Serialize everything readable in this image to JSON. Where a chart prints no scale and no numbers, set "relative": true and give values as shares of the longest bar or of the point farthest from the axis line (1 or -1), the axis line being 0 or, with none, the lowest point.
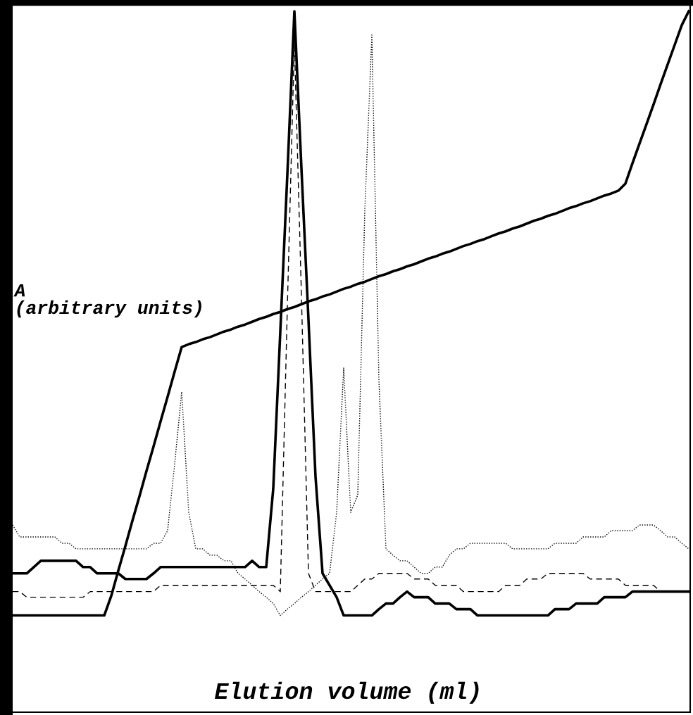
{
  "chart_data": {
    "type": "line",
    "relative": true,
    "xlabel": "Elution volume (ml)",
    "ylabel": "A\n(arbitrary units)",
    "legend": false,
    "grid": false,
    "marker": "none",
    "categories": [
      null,
      null,
      null,
      null,
      null,
      null,
      null,
      null,
      null,
      null,
      null,
      null,
      null,
      null,
      null,
      null,
      null,
      null,
      null,
      null,
      null,
      null,
      null,
      null,
      null,
      null,
      null,
      null,
      null,
      null,
      null,
      null,
      null,
      null,
      null,
      null,
      null,
      null,
      null,
      null,
      null,
      null,
      null,
      null,
      null,
      null,
      null,
      null,
      null,
      null,
      null,
      null,
      null,
      null,
      null,
      null,
      null,
      null,
      null,
      null,
      null,
      null,
      null,
      null,
      null,
      null,
      null,
      null,
      null,
      null,
      null,
      null,
      null,
      null,
      null,
      null,
      null,
      null,
      null,
      null,
      null,
      null,
      null,
      null,
      null,
      null,
      null,
      null,
      null,
      null,
      null,
      null,
      null,
      null,
      null,
      null,
      null
    ],
    "series": [
      {
        "color": "#000000",
        "line_style": "solid",
        "values": [
          0.138,
          0.138,
          0.138,
          0.138,
          0.138,
          0.138,
          0.138,
          0.138,
          0.138,
          0.138,
          0.138,
          0.138,
          0.138,
          0.138,
          0.166,
          0.202,
          0.237,
          0.273,
          0.308,
          0.344,
          0.379,
          0.415,
          0.45,
          0.486,
          0.521,
          0.525,
          0.528,
          0.532,
          0.535,
          0.539,
          0.543,
          0.546,
          0.55,
          0.553,
          0.557,
          0.561,
          0.564,
          0.568,
          0.571,
          0.575,
          0.578,
          0.582,
          0.586,
          0.589,
          0.593,
          0.596,
          0.6,
          0.604,
          0.607,
          0.611,
          0.614,
          0.618,
          0.622,
          0.625,
          0.629,
          0.632,
          0.636,
          0.639,
          0.643,
          0.647,
          0.65,
          0.654,
          0.657,
          0.661,
          0.665,
          0.668,
          0.672,
          0.675,
          0.679,
          0.683,
          0.686,
          0.69,
          0.693,
          0.697,
          0.701,
          0.704,
          0.708,
          0.711,
          0.715,
          0.719,
          0.722,
          0.726,
          0.729,
          0.733,
          0.737,
          0.74,
          0.744,
          0.754,
          0.783,
          0.811,
          0.839,
          0.867,
          0.896,
          0.924,
          0.952,
          0.98,
          1.0
        ]
      },
      {
        "color": "#000000",
        "line_style": "solid",
        "values": [
          0.198,
          0.198,
          0.198,
          0.207,
          0.216,
          0.216,
          0.216,
          0.216,
          0.216,
          0.216,
          0.207,
          0.207,
          0.198,
          0.198,
          0.198,
          0.198,
          0.19,
          0.19,
          0.19,
          0.19,
          0.198,
          0.207,
          0.207,
          0.207,
          0.207,
          0.207,
          0.207,
          0.207,
          0.207,
          0.207,
          0.207,
          0.207,
          0.207,
          0.207,
          0.216,
          0.207,
          0.207,
          0.319,
          0.543,
          0.767,
          1.0,
          0.776,
          0.56,
          0.336,
          0.198,
          0.181,
          0.164,
          0.138,
          0.138,
          0.138,
          0.138,
          0.138,
          0.147,
          0.155,
          0.155,
          0.164,
          0.172,
          0.164,
          0.164,
          0.164,
          0.155,
          0.155,
          0.155,
          0.147,
          0.147,
          0.147,
          0.138,
          0.138,
          0.138,
          0.138,
          0.138,
          0.138,
          0.138,
          0.138,
          0.138,
          0.138,
          0.138,
          0.147,
          0.147,
          0.147,
          0.155,
          0.155,
          0.155,
          0.155,
          0.164,
          0.164,
          0.164,
          0.164,
          0.172,
          0.172,
          0.172,
          0.172,
          0.172,
          0.172,
          0.172,
          0.172,
          0.172
        ]
      },
      {
        "color": "#000000",
        "line_style": "dashed",
        "values": [
          0.172,
          0.172,
          0.164,
          0.164,
          0.164,
          0.164,
          0.164,
          0.164,
          0.164,
          0.164,
          0.164,
          0.172,
          0.172,
          0.172,
          0.172,
          0.172,
          0.172,
          0.172,
          0.172,
          0.172,
          0.172,
          0.181,
          0.181,
          0.181,
          0.181,
          0.181,
          0.181,
          0.181,
          0.181,
          0.181,
          0.181,
          0.181,
          0.181,
          0.181,
          0.181,
          0.181,
          0.181,
          0.181,
          0.172,
          0.578,
          0.957,
          0.595,
          0.198,
          0.172,
          0.172,
          0.172,
          0.172,
          0.172,
          0.172,
          0.181,
          0.19,
          0.19,
          0.198,
          0.198,
          0.198,
          0.198,
          0.198,
          0.19,
          0.19,
          0.19,
          0.181,
          0.181,
          0.181,
          0.181,
          0.172,
          0.172,
          0.172,
          0.172,
          0.172,
          0.172,
          0.181,
          0.181,
          0.181,
          0.19,
          0.19,
          0.19,
          0.198,
          0.198,
          0.198,
          0.198,
          0.198,
          0.198,
          0.19,
          0.19,
          0.19,
          0.19,
          0.19,
          0.181,
          0.181,
          0.181,
          0.181,
          0.181,
          0.172,
          0.172,
          0.172,
          0.172,
          0.172
        ]
      },
      {
        "color": "#000000",
        "line_style": "dotted",
        "values": [
          0.267,
          0.25,
          0.25,
          0.25,
          0.25,
          0.25,
          0.25,
          0.241,
          0.241,
          0.233,
          0.233,
          0.233,
          0.233,
          0.233,
          0.233,
          0.233,
          0.233,
          0.233,
          0.233,
          0.233,
          0.241,
          0.241,
          0.259,
          0.354,
          0.457,
          0.285,
          0.233,
          0.233,
          0.224,
          0.224,
          0.216,
          0.216,
          0.198,
          0.19,
          0.181,
          0.172,
          0.164,
          0.155,
          0.138,
          0.147,
          0.155,
          0.164,
          0.172,
          0.181,
          0.19,
          0.198,
          0.285,
          0.491,
          0.285,
          0.31,
          0.716,
          0.966,
          0.474,
          0.233,
          0.224,
          0.216,
          0.216,
          0.207,
          0.198,
          0.198,
          0.207,
          0.207,
          0.224,
          0.233,
          0.233,
          0.241,
          0.241,
          0.241,
          0.241,
          0.241,
          0.241,
          0.233,
          0.233,
          0.233,
          0.233,
          0.233,
          0.233,
          0.241,
          0.241,
          0.241,
          0.241,
          0.25,
          0.25,
          0.25,
          0.25,
          0.259,
          0.259,
          0.259,
          0.259,
          0.267,
          0.267,
          0.267,
          0.259,
          0.25,
          0.25,
          0.241,
          0.233
        ]
      }
    ]
  }
}
